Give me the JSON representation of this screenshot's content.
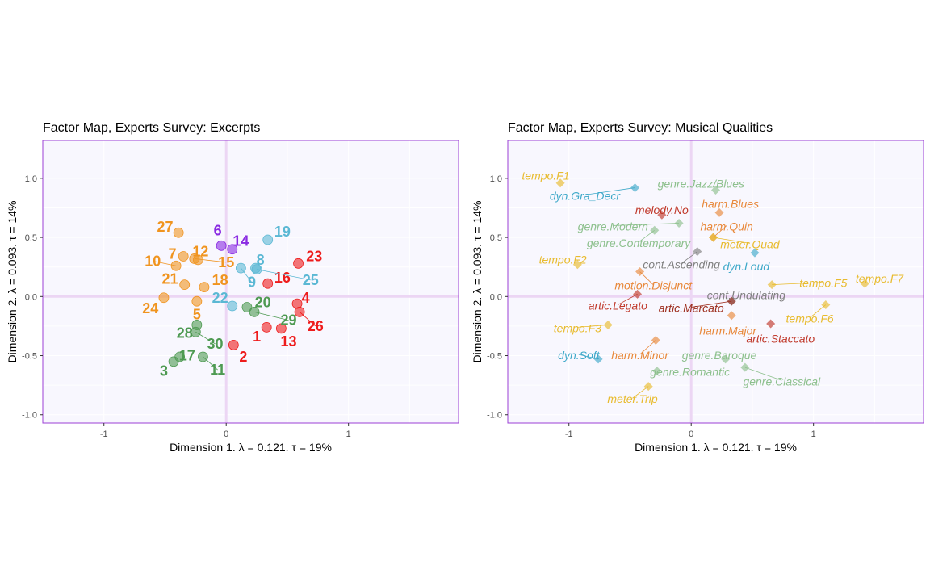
{
  "chart_data": [
    {
      "type": "scatter",
      "title": "Factor Map, Experts Survey: Excerpts",
      "xlabel": "Dimension 1.   λ = 0.121.  τ = 19%",
      "ylabel": "Dimension 2.   λ = 0.093.  τ = 14%",
      "xlim": [
        -1.5,
        1.9
      ],
      "ylim": [
        -1.07,
        1.32
      ],
      "xticks": [
        -1,
        0,
        1
      ],
      "yticks": [
        -1.0,
        -0.5,
        0.0,
        0.5,
        1.0
      ],
      "colors": {
        "orange": "#f0941f",
        "purple": "#8a2be2",
        "cyan": "#5bb8d4",
        "red": "#ee1c1c",
        "green": "#4e9a52"
      },
      "points": [
        {
          "label": "1",
          "x": 0.33,
          "y": -0.26,
          "group": "red",
          "lx": 0.25,
          "ly": -0.34
        },
        {
          "label": "2",
          "x": 0.06,
          "y": -0.41,
          "group": "red",
          "lx": 0.14,
          "ly": -0.51
        },
        {
          "label": "3",
          "x": -0.43,
          "y": -0.55,
          "group": "green",
          "lx": -0.51,
          "ly": -0.63
        },
        {
          "label": "4",
          "x": 0.58,
          "y": -0.06,
          "group": "red",
          "lx": 0.65,
          "ly": -0.01
        },
        {
          "label": "5",
          "x": -0.24,
          "y": -0.04,
          "group": "orange",
          "lx": -0.24,
          "ly": -0.15
        },
        {
          "label": "6",
          "x": -0.04,
          "y": 0.43,
          "group": "purple",
          "lx": -0.07,
          "ly": 0.56
        },
        {
          "label": "7",
          "x": -0.35,
          "y": 0.34,
          "group": "orange",
          "lx": -0.44,
          "ly": 0.36
        },
        {
          "label": "8",
          "x": 0.24,
          "y": 0.24,
          "group": "cyan",
          "lx": 0.28,
          "ly": 0.31
        },
        {
          "label": "9",
          "x": 0.12,
          "y": 0.24,
          "group": "cyan",
          "lx": 0.21,
          "ly": 0.12
        },
        {
          "label": "10",
          "x": -0.41,
          "y": 0.26,
          "group": "orange",
          "lx": -0.6,
          "ly": 0.3
        },
        {
          "label": "11",
          "x": -0.19,
          "y": -0.51,
          "group": "green",
          "lx": -0.07,
          "ly": -0.62
        },
        {
          "label": "12",
          "x": -0.23,
          "y": 0.31,
          "group": "orange",
          "lx": -0.21,
          "ly": 0.38
        },
        {
          "label": "13",
          "x": 0.45,
          "y": -0.27,
          "group": "red",
          "lx": 0.51,
          "ly": -0.38
        },
        {
          "label": "14",
          "x": 0.05,
          "y": 0.4,
          "group": "purple",
          "lx": 0.12,
          "ly": 0.47
        },
        {
          "label": "15",
          "x": -0.26,
          "y": 0.32,
          "group": "orange",
          "lx": 0.0,
          "ly": 0.29
        },
        {
          "label": "16",
          "x": 0.34,
          "y": 0.11,
          "group": "red",
          "lx": 0.46,
          "ly": 0.16
        },
        {
          "label": "17",
          "x": -0.38,
          "y": -0.51,
          "group": "green",
          "lx": -0.32,
          "ly": -0.5
        },
        {
          "label": "18",
          "x": -0.18,
          "y": 0.08,
          "group": "orange",
          "lx": -0.05,
          "ly": 0.14
        },
        {
          "label": "19",
          "x": 0.34,
          "y": 0.48,
          "group": "cyan",
          "lx": 0.46,
          "ly": 0.55
        },
        {
          "label": "20",
          "x": 0.17,
          "y": -0.09,
          "group": "green",
          "lx": 0.3,
          "ly": -0.05
        },
        {
          "label": "21",
          "x": -0.34,
          "y": 0.1,
          "group": "orange",
          "lx": -0.46,
          "ly": 0.15
        },
        {
          "label": "22",
          "x": 0.05,
          "y": -0.08,
          "group": "cyan",
          "lx": -0.05,
          "ly": -0.01
        },
        {
          "label": "23",
          "x": 0.59,
          "y": 0.28,
          "group": "red",
          "lx": 0.72,
          "ly": 0.34
        },
        {
          "label": "24",
          "x": -0.51,
          "y": -0.01,
          "group": "orange",
          "lx": -0.62,
          "ly": -0.1
        },
        {
          "label": "25",
          "x": 0.25,
          "y": 0.23,
          "group": "cyan",
          "lx": 0.69,
          "ly": 0.14
        },
        {
          "label": "26",
          "x": 0.6,
          "y": -0.13,
          "group": "red",
          "lx": 0.73,
          "ly": -0.25
        },
        {
          "label": "27",
          "x": -0.39,
          "y": 0.54,
          "group": "orange",
          "lx": -0.5,
          "ly": 0.59
        },
        {
          "label": "28",
          "x": -0.24,
          "y": -0.24,
          "group": "green",
          "lx": -0.34,
          "ly": -0.31
        },
        {
          "label": "29",
          "x": 0.23,
          "y": -0.13,
          "group": "green",
          "lx": 0.51,
          "ly": -0.2
        },
        {
          "label": "30",
          "x": -0.25,
          "y": -0.3,
          "group": "green",
          "lx": -0.09,
          "ly": -0.4
        }
      ]
    },
    {
      "type": "scatter",
      "title": "Factor Map, Experts Survey: Musical Qualities",
      "xlabel": "Dimension 1.   λ = 0.121.  τ = 19%",
      "ylabel": "Dimension 2.   λ = 0.093.  τ = 14%",
      "xlim": [
        -1.5,
        1.9
      ],
      "ylim": [
        -1.07,
        1.32
      ],
      "xticks": [
        -1,
        0,
        1
      ],
      "yticks": [
        -1.0,
        -0.5,
        0.0,
        0.5,
        1.0
      ],
      "colors": {
        "yellow": "#e8bb2e",
        "cyan": "#3fa9c9",
        "green": "#8dc08d",
        "orange": "#e8883a",
        "darkred": "#c0392b",
        "brown": "#9e3020",
        "grey": "#808080"
      },
      "points": [
        {
          "label": "tempo.F1",
          "x": -1.07,
          "y": 0.96,
          "group": "yellow",
          "lx": -1.19,
          "ly": 1.03
        },
        {
          "label": "dyn.Gra_Decr",
          "x": -0.46,
          "y": 0.92,
          "group": "cyan",
          "lx": -0.87,
          "ly": 0.86
        },
        {
          "label": "genre.Jazz/Blues",
          "x": 0.2,
          "y": 0.9,
          "group": "green",
          "lx": 0.08,
          "ly": 0.96
        },
        {
          "label": "harm.Blues",
          "x": 0.23,
          "y": 0.71,
          "group": "orange",
          "lx": 0.32,
          "ly": 0.79
        },
        {
          "label": "melody.No",
          "x": -0.24,
          "y": 0.69,
          "group": "darkred",
          "lx": -0.24,
          "ly": 0.74
        },
        {
          "label": "genre.Modern",
          "x": -0.1,
          "y": 0.62,
          "group": "green",
          "lx": -0.64,
          "ly": 0.6
        },
        {
          "label": "harm.Quin",
          "x": 0.18,
          "y": 0.5,
          "group": "orange",
          "lx": 0.29,
          "ly": 0.6
        },
        {
          "label": "genre.Contemporary",
          "x": -0.3,
          "y": 0.56,
          "group": "green",
          "lx": -0.43,
          "ly": 0.46
        },
        {
          "label": "meter.Quad",
          "x": 0.18,
          "y": 0.5,
          "group": "yellow",
          "lx": 0.48,
          "ly": 0.45
        },
        {
          "label": "cont.Ascending",
          "x": 0.05,
          "y": 0.38,
          "group": "grey",
          "lx": -0.08,
          "ly": 0.28
        },
        {
          "label": "dyn.Loud",
          "x": 0.52,
          "y": 0.37,
          "group": "cyan",
          "lx": 0.45,
          "ly": 0.26
        },
        {
          "label": "tempo.F2",
          "x": -0.93,
          "y": 0.27,
          "group": "yellow",
          "lx": -1.05,
          "ly": 0.32
        },
        {
          "label": "motion.Disjunct",
          "x": -0.42,
          "y": 0.21,
          "group": "orange",
          "lx": -0.31,
          "ly": 0.1
        },
        {
          "label": "tempo.F7",
          "x": 1.42,
          "y": 0.11,
          "group": "yellow",
          "lx": 1.54,
          "ly": 0.16
        },
        {
          "label": "tempo.F5",
          "x": 0.66,
          "y": 0.1,
          "group": "yellow",
          "lx": 1.08,
          "ly": 0.12
        },
        {
          "label": "cont.Undulating",
          "x": 0.33,
          "y": -0.04,
          "group": "grey",
          "lx": 0.45,
          "ly": 0.02
        },
        {
          "label": "artic.Legato",
          "x": -0.44,
          "y": 0.02,
          "group": "darkred",
          "lx": -0.6,
          "ly": -0.07
        },
        {
          "label": "artic.Marcato",
          "x": 0.33,
          "y": -0.04,
          "group": "brown",
          "lx": 0.0,
          "ly": -0.09
        },
        {
          "label": "tempo.F6",
          "x": 1.1,
          "y": -0.07,
          "group": "yellow",
          "lx": 0.97,
          "ly": -0.18
        },
        {
          "label": "harm.Major",
          "x": 0.33,
          "y": -0.16,
          "group": "orange",
          "lx": 0.3,
          "ly": -0.28
        },
        {
          "label": "artic.Staccato",
          "x": 0.65,
          "y": -0.23,
          "group": "darkred",
          "lx": 0.73,
          "ly": -0.35
        },
        {
          "label": "tempo.F3",
          "x": -0.68,
          "y": -0.24,
          "group": "yellow",
          "lx": -0.93,
          "ly": -0.26
        },
        {
          "label": "harm.Minor",
          "x": -0.29,
          "y": -0.37,
          "group": "orange",
          "lx": -0.42,
          "ly": -0.49
        },
        {
          "label": "genre.Baroque",
          "x": 0.28,
          "y": -0.53,
          "group": "green",
          "lx": 0.23,
          "ly": -0.49
        },
        {
          "label": "dyn.Soft",
          "x": -0.76,
          "y": -0.53,
          "group": "cyan",
          "lx": -0.92,
          "ly": -0.49
        },
        {
          "label": "genre.Romantic",
          "x": -0.28,
          "y": -0.63,
          "group": "green",
          "lx": -0.01,
          "ly": -0.63
        },
        {
          "label": "genre.Classical",
          "x": 0.44,
          "y": -0.6,
          "group": "green",
          "lx": 0.74,
          "ly": -0.71
        },
        {
          "label": "meter.Trip",
          "x": -0.35,
          "y": -0.76,
          "group": "yellow",
          "lx": -0.48,
          "ly": -0.86
        }
      ]
    }
  ]
}
